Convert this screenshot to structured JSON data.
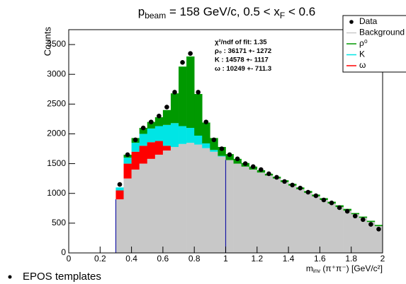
{
  "chart_data": {
    "type": "histogram",
    "title_parts": [
      "p",
      "beam",
      " = 158 GeV/c, 0.5 < x",
      "F",
      " < 0.6"
    ],
    "ylabel": "Counts",
    "xlabel_parts": [
      "m",
      "inv",
      " (π⁺π⁻) [GeV/c²]"
    ],
    "bins": [
      0.3,
      0.35,
      0.4,
      0.45,
      0.5,
      0.55,
      0.6,
      0.65,
      0.7,
      0.75,
      0.8,
      0.85,
      0.9,
      0.95,
      1.0,
      1.05,
      1.1,
      1.15,
      1.2,
      1.25,
      1.3,
      1.35,
      1.4,
      1.45,
      1.5,
      1.55,
      1.6,
      1.65,
      1.7,
      1.75,
      1.8,
      1.85,
      1.9,
      1.95,
      2.0
    ],
    "series": [
      {
        "name": "Background",
        "color": "#c8c8c8",
        "values": [
          900,
          1250,
          1400,
          1500,
          1580,
          1650,
          1720,
          1780,
          1830,
          1850,
          1820,
          1760,
          1700,
          1620,
          1560,
          1500,
          1450,
          1400,
          1350,
          1300,
          1250,
          1190,
          1130,
          1070,
          1010,
          950,
          890,
          830,
          770,
          710,
          650,
          590,
          520,
          450
        ]
      },
      {
        "name": "ω",
        "color": "#ff0000",
        "values": [
          150,
          250,
          300,
          300,
          280,
          230,
          80,
          0,
          0,
          0,
          0,
          0,
          0,
          0,
          0,
          0,
          0,
          0,
          0,
          0,
          0,
          0,
          0,
          0,
          0,
          0,
          0,
          0,
          0,
          0,
          0,
          0,
          0,
          0
        ]
      },
      {
        "name": "K",
        "color": "#00e5e5",
        "values": [
          50,
          100,
          150,
          200,
          230,
          250,
          350,
          400,
          300,
          250,
          150,
          80,
          30,
          10,
          0,
          0,
          0,
          0,
          0,
          0,
          0,
          0,
          0,
          0,
          0,
          0,
          0,
          0,
          0,
          0,
          0,
          0,
          0,
          0
        ]
      },
      {
        "name": "ρ⁰",
        "color": "#009900",
        "values": [
          0,
          50,
          80,
          100,
          110,
          150,
          250,
          500,
          1000,
          1200,
          700,
          350,
          200,
          150,
          100,
          80,
          60,
          50,
          40,
          30,
          30,
          30,
          30,
          30,
          30,
          30,
          30,
          30,
          30,
          30,
          20,
          20,
          20,
          20
        ]
      }
    ],
    "data_points": {
      "name": "Data",
      "color": "#000000",
      "x": [
        0.325,
        0.375,
        0.425,
        0.475,
        0.525,
        0.575,
        0.625,
        0.675,
        0.725,
        0.775,
        0.825,
        0.875,
        0.925,
        0.975,
        1.025,
        1.075,
        1.125,
        1.175,
        1.225,
        1.275,
        1.325,
        1.375,
        1.425,
        1.475,
        1.525,
        1.575,
        1.625,
        1.675,
        1.725,
        1.775,
        1.825,
        1.875,
        1.925,
        1.975
      ],
      "values": [
        1150,
        1650,
        1900,
        2100,
        2200,
        2300,
        2450,
        2700,
        3200,
        3350,
        2700,
        2200,
        1900,
        1750,
        1650,
        1580,
        1500,
        1450,
        1400,
        1330,
        1270,
        1200,
        1140,
        1090,
        1020,
        960,
        890,
        840,
        760,
        700,
        620,
        560,
        480,
        400
      ]
    },
    "fit_range": [
      0.3,
      1.0
    ],
    "fit_range_color": "#1a1aa6",
    "legend_order": [
      "Data",
      "Background",
      "ρ⁰",
      "K",
      "ω"
    ],
    "stats": [
      "χ²/ndf of fit: 1.35",
      "ρ₀ : 36171 +- 1272",
      "K  : 14578 +- 1117",
      "ω : 10249 +- 711.3"
    ],
    "xlim": [
      0,
      2
    ],
    "xticks": [
      0,
      0.2,
      0.4,
      0.6,
      0.8,
      1,
      1.2,
      1.4,
      1.6,
      1.8,
      2
    ],
    "ylim": [
      0,
      3750
    ],
    "yticks": [
      0,
      500,
      1000,
      1500,
      2000,
      2500,
      3000,
      3500
    ],
    "bullet": "EPOS templates"
  }
}
